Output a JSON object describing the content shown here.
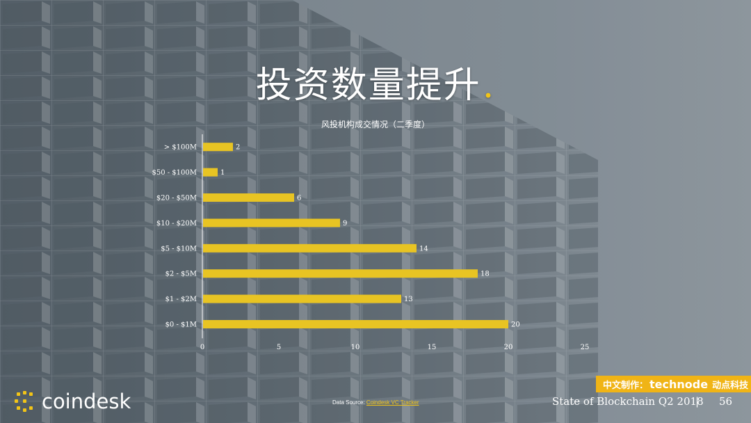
{
  "slide": {
    "title": "投资数量提升",
    "title_dot": ".",
    "page_number": "56",
    "report_name": "State of Blockchain Q2 2018",
    "separator": "|"
  },
  "brand": {
    "logo_text": "coindesk",
    "logo_icon": "coindesk-logo-icon",
    "accent_color": "#f2c417"
  },
  "badge": {
    "prefix": "中文制作：",
    "brand": "technode",
    "suffix": "动点科技",
    "color": "#f0b416"
  },
  "source": {
    "label": "Data Source: ",
    "link_text": "Coindesk VC Tracker"
  },
  "chart_data": {
    "type": "bar",
    "orientation": "horizontal",
    "title": "风投机构成交情况（二季度）",
    "categories": [
      "> $100M",
      "$50 - $100M",
      "$20 - $50M",
      "$10 - $20M",
      "$5 - $10M",
      "$2 - $5M",
      "$1 - $2M",
      "$0 - $1M"
    ],
    "values": [
      2,
      1,
      6,
      9,
      14,
      18,
      13,
      20
    ],
    "xlim": [
      0,
      25
    ],
    "xticks": [
      0,
      5,
      10,
      15,
      20,
      25
    ],
    "bar_color": "#e8c423",
    "grid": false,
    "legend": "none"
  }
}
